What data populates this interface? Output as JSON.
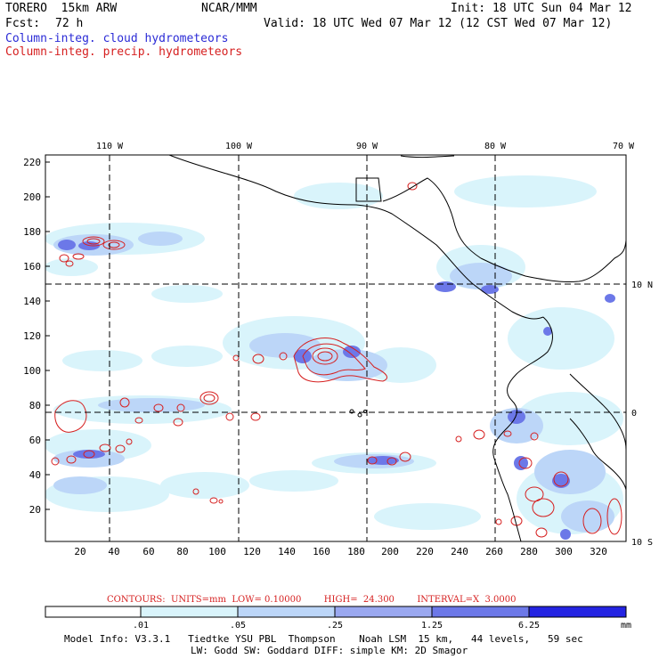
{
  "header": {
    "model": "TORERO  15km ARW",
    "org": "NCAR/MMM",
    "init": "Init: 18 UTC Sun 04 Mar 12",
    "fcst_label": "Fcst:",
    "fcst_value": "72 h",
    "valid": "Valid: 18 UTC Wed 07 Mar 12 (12 CST Wed 07 Mar 12)"
  },
  "legend": {
    "cloud": "Column-integ. cloud hydrometeors",
    "precip": "Column-integ. precip. hydrometeors",
    "cloud_color": "#2b2bd6",
    "precip_color": "#d62020"
  },
  "map": {
    "top_lon_labels": [
      "110 W",
      "100 W",
      "90 W",
      "80 W",
      "70 W"
    ],
    "right_lat_labels": [
      "10 N",
      "0",
      "10 S"
    ],
    "y_ticks": [
      "220",
      "200",
      "180",
      "160",
      "140",
      "120",
      "100",
      "80",
      "60",
      "40",
      "20"
    ],
    "x_ticks": [
      "20",
      "40",
      "60",
      "80",
      "100",
      "120",
      "140",
      "160",
      "180",
      "200",
      "220",
      "240",
      "260",
      "280",
      "300",
      "320"
    ]
  },
  "contours_line": "CONTOURS:  UNITS=mm  LOW= 0.10000        HIGH=  24.300        INTERVAL=X  3.0000",
  "colorbar": {
    "labels": [
      ".01",
      ".05",
      ".25",
      "1.25",
      "6.25"
    ],
    "unit": "mm",
    "colors": [
      "#ffffff",
      "#d9f4fb",
      "#bcd6f8",
      "#9aa8f0",
      "#6c78e8",
      "#4848e6",
      "#2424e2"
    ]
  },
  "footer": {
    "line1": "Model Info: V3.3.1   Tiedtke YSU PBL  Thompson    Noah LSM  15 km,   44 levels,   59 sec",
    "line2": "LW: Godd SW: Goddard DIFF: simple KM: 2D Smagor"
  }
}
